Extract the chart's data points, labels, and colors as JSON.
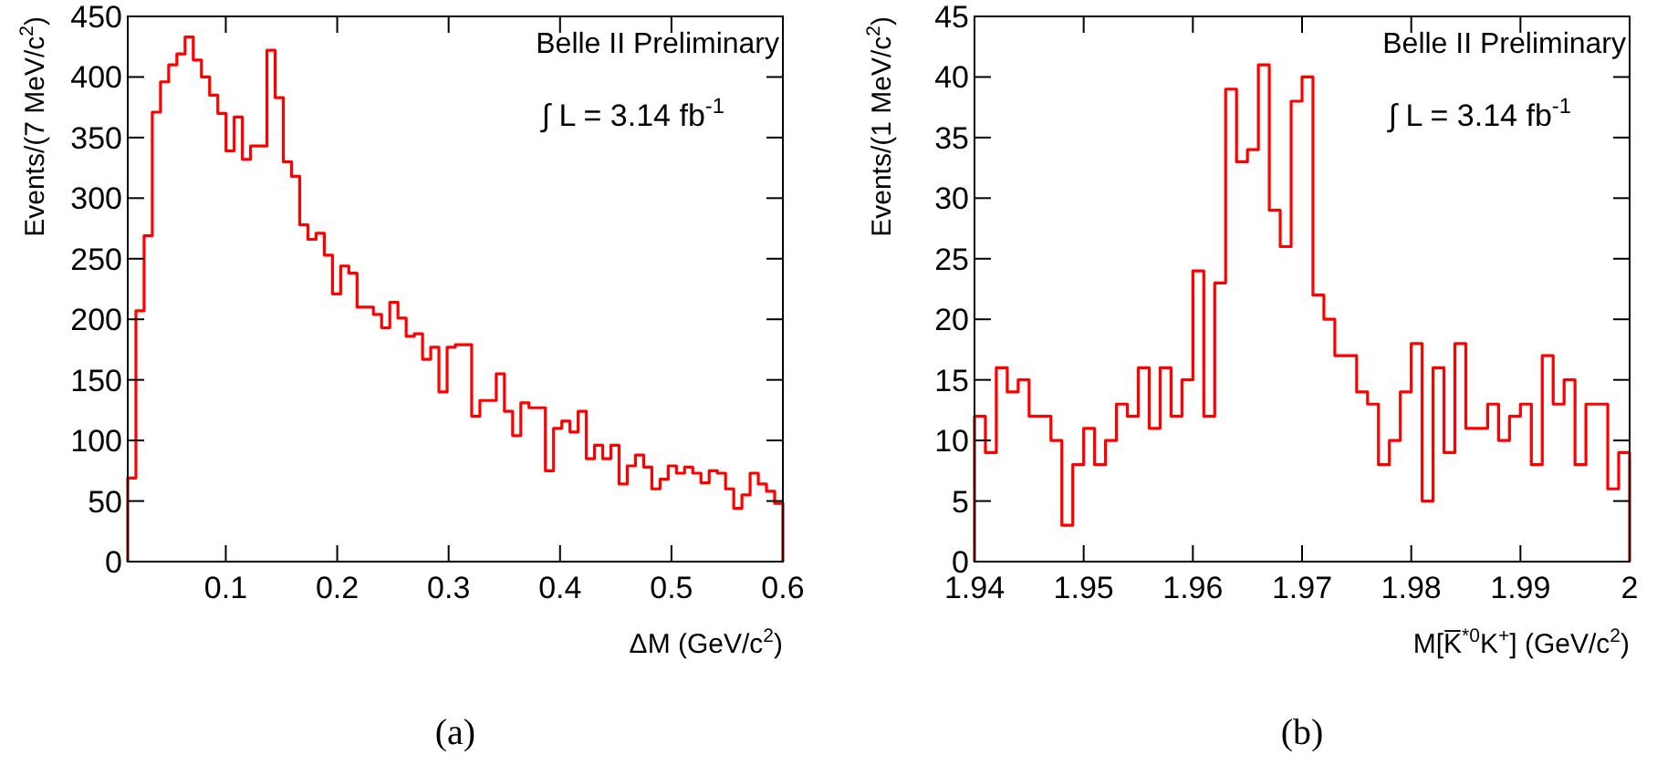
{
  "chart_data": [
    {
      "type": "histogram",
      "xlabel": "ΔM (GeV/c$^{2}$)",
      "ylabel": "Events/(7 MeV/c$^{2}$)",
      "annotations": [
        "Belle II Preliminary",
        "∫ L = 3.14 fb$^{-1}$",
        "(a)"
      ],
      "color": "#ff0000",
      "xlim": [
        0.012,
        0.6
      ],
      "ylim": [
        0,
        450
      ],
      "xticks": [
        0.1,
        0.2,
        0.3,
        0.4,
        0.5,
        0.6
      ],
      "yticks": [
        0,
        50,
        100,
        150,
        200,
        250,
        300,
        350,
        400,
        450
      ],
      "bins": [
        0.012,
        0.01935,
        0.0267,
        0.03405,
        0.0414,
        0.04875,
        0.0561,
        0.06345,
        0.0708,
        0.07815,
        0.0855,
        0.09285,
        0.1002,
        0.10755,
        0.1149,
        0.12225,
        0.1296,
        0.13695,
        0.1443,
        0.15165,
        0.159,
        0.16635,
        0.1737,
        0.18105,
        0.1884,
        0.19575,
        0.2031,
        0.21045,
        0.2178,
        0.22515,
        0.2325,
        0.23985,
        0.2472,
        0.25455,
        0.2619,
        0.26925,
        0.2766,
        0.28395,
        0.2913,
        0.29865,
        0.306,
        0.31335,
        0.3207,
        0.32805,
        0.3354,
        0.34275,
        0.3501,
        0.35745,
        0.3648,
        0.37215,
        0.3795,
        0.38685,
        0.3942,
        0.40155,
        0.4089,
        0.41625,
        0.4236,
        0.43095,
        0.4383,
        0.44565,
        0.453,
        0.46035,
        0.4677,
        0.47505,
        0.4824,
        0.48975,
        0.4971,
        0.50445,
        0.5118,
        0.51915,
        0.5265,
        0.53385,
        0.5412,
        0.54855,
        0.5559,
        0.56325,
        0.5706,
        0.57795,
        0.5853,
        0.59265,
        0.6
      ],
      "values": [
        69,
        207,
        269,
        371,
        396,
        410,
        419,
        433,
        414,
        400,
        385,
        370,
        339,
        367,
        332,
        343,
        343,
        422,
        383,
        330,
        318,
        278,
        266,
        271,
        253,
        221,
        244,
        238,
        210,
        210,
        204,
        193,
        214,
        201,
        186,
        188,
        167,
        177,
        140,
        177,
        179,
        179,
        120,
        133,
        133,
        155,
        124,
        104,
        131,
        127,
        127,
        75,
        110,
        116,
        107,
        124,
        85,
        96,
        85,
        96,
        64,
        79,
        88,
        78,
        60,
        68,
        79,
        73,
        78,
        73,
        65,
        75,
        73,
        60,
        44,
        55,
        73,
        64,
        58,
        48
      ]
    },
    {
      "type": "histogram",
      "xlabel": "M[K̅$^{*0}$K$^{+}$]  (GeV/c$^{2}$)",
      "ylabel": "Events/(1 MeV/c$^{2}$)",
      "annotations": [
        "Belle II Preliminary",
        "∫ L = 3.14 fb$^{-1}$",
        "(b)"
      ],
      "color": "#ff0000",
      "xlim": [
        1.94,
        2
      ],
      "ylim": [
        0,
        45
      ],
      "xticks": [
        1.94,
        1.95,
        1.96,
        1.97,
        1.98,
        1.99,
        2
      ],
      "yticks": [
        0,
        5,
        10,
        15,
        20,
        25,
        30,
        35,
        40,
        45
      ],
      "bins": [
        1.94,
        1.941,
        1.942,
        1.943,
        1.944,
        1.945,
        1.946,
        1.947,
        1.948,
        1.949,
        1.95,
        1.951,
        1.952,
        1.953,
        1.954,
        1.955,
        1.956,
        1.957,
        1.958,
        1.959,
        1.96,
        1.961,
        1.962,
        1.963,
        1.964,
        1.965,
        1.966,
        1.967,
        1.968,
        1.969,
        1.97,
        1.971,
        1.972,
        1.973,
        1.974,
        1.975,
        1.976,
        1.977,
        1.978,
        1.979,
        1.98,
        1.981,
        1.982,
        1.983,
        1.984,
        1.985,
        1.986,
        1.987,
        1.988,
        1.989,
        1.99,
        1.991,
        1.992,
        1.993,
        1.994,
        1.995,
        1.996,
        1.997,
        1.998,
        1.999,
        2
      ],
      "values": [
        12,
        9,
        16,
        14,
        15,
        12,
        12,
        10,
        3,
        8,
        11,
        8,
        10,
        13,
        12,
        16,
        11,
        16,
        12,
        15,
        24,
        12,
        23,
        39,
        33,
        34,
        41,
        29,
        26,
        38,
        40,
        22,
        20,
        17,
        17,
        14,
        13,
        8,
        10,
        14,
        18,
        5,
        16,
        9,
        18,
        11,
        11,
        13,
        10,
        12,
        13,
        8,
        17,
        13,
        15,
        8,
        13,
        13,
        6,
        9
      ]
    }
  ]
}
